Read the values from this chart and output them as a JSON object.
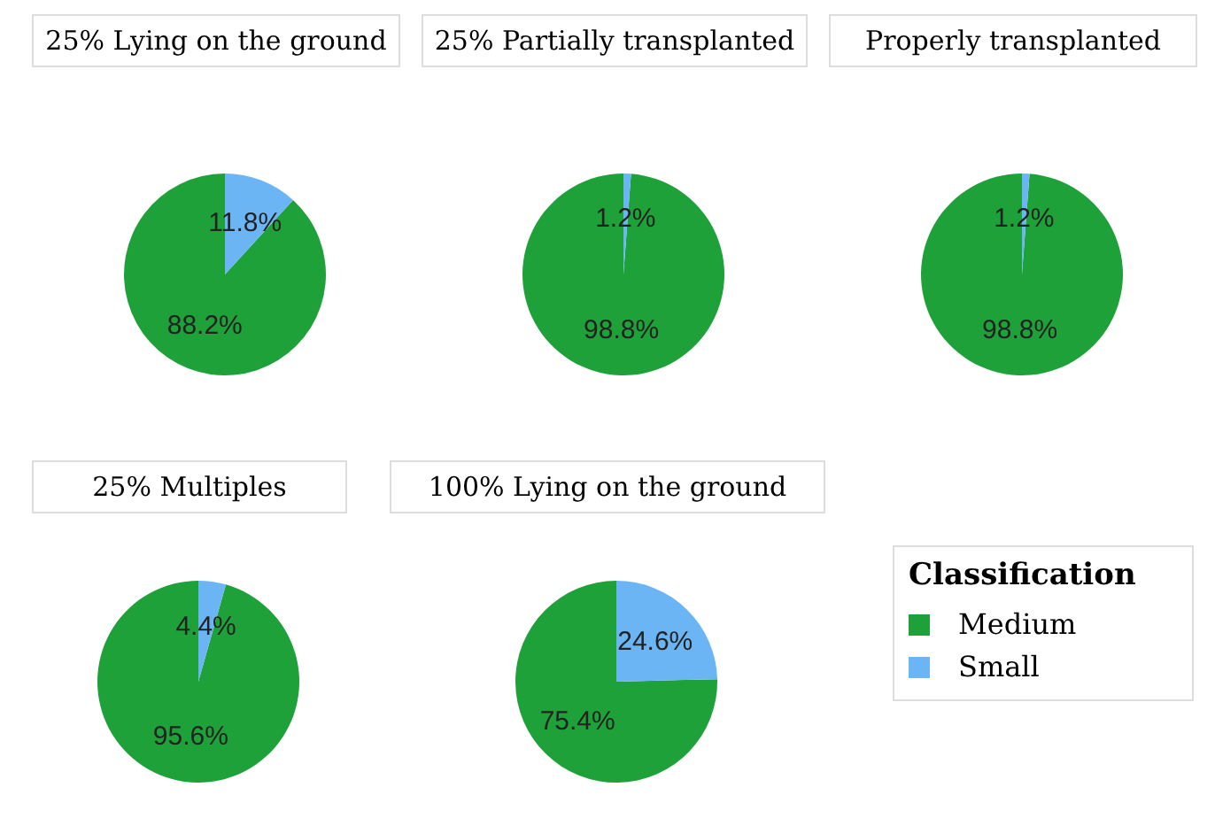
{
  "chart_data": [
    {
      "type": "pie",
      "title": "25% Lying on the ground",
      "categories": [
        null,
        null
      ],
      "values": [
        88.2,
        11.8
      ],
      "colors": [
        "#1fa139",
        "#6bb5f5"
      ],
      "value_labels": [
        "88.2%",
        "11.8%"
      ],
      "legend": false
    },
    {
      "type": "pie",
      "title": "25% Partially transplanted",
      "categories": [
        null,
        null
      ],
      "values": [
        98.8,
        1.2
      ],
      "colors": [
        "#1fa139",
        "#6bb5f5"
      ],
      "value_labels": [
        "98.8%",
        "1.2%"
      ],
      "legend": false
    },
    {
      "type": "pie",
      "title": "Properly transplanted",
      "categories": [
        null,
        null
      ],
      "values": [
        98.8,
        1.2
      ],
      "colors": [
        "#1fa139",
        "#6bb5f5"
      ],
      "value_labels": [
        "98.8%",
        "1.2%"
      ],
      "legend": false
    },
    {
      "type": "pie",
      "title": "25% Multiples",
      "categories": [
        null,
        null
      ],
      "values": [
        95.6,
        4.4
      ],
      "colors": [
        "#1fa139",
        "#6bb5f5"
      ],
      "value_labels": [
        "95.6%",
        "4.4%"
      ],
      "legend": false
    },
    {
      "type": "pie",
      "title": "100% Lying on the ground",
      "categories": [
        "Medium",
        "Small"
      ],
      "values": [
        75.4,
        24.6
      ],
      "colors": [
        "#1fa139",
        "#6bb5f5"
      ],
      "value_labels": [
        "75.4%",
        "24.6%"
      ],
      "legend": "right",
      "legend_title": "Classification"
    }
  ]
}
